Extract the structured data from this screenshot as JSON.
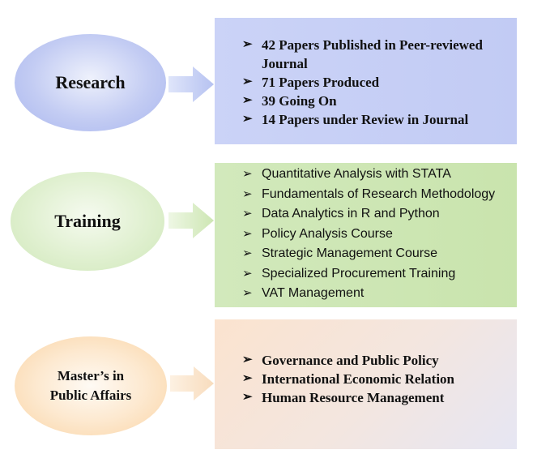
{
  "sections": [
    {
      "title": "Research",
      "items": [
        "42 Papers Published in Peer-reviewed Journal",
        "71 Papers Produced",
        "39 Going On",
        "14 Papers under Review in Journal"
      ]
    },
    {
      "title": "Training",
      "items": [
        "Quantitative Analysis with STATA",
        "Fundamentals of Research Methodology",
        "Data Analytics in R and Python",
        "Policy Analysis Course",
        "Strategic Management Course",
        "Specialized Procurement Training",
        "VAT Management"
      ]
    },
    {
      "title_line1": "Master’s in",
      "title_line2": "Public Affairs",
      "items": [
        "Governance and Public Policy",
        "International Economic Relation",
        "Human Resource Management"
      ]
    }
  ],
  "bullet_glyph": "➢",
  "colors": {
    "research_oval": "#b8c4f0",
    "research_box": "#c6cff6",
    "training_oval": "#d7ecc3",
    "training_box": "#cde6b3",
    "masters_oval": "#fbe0bf",
    "masters_box": "#f6e4d6"
  }
}
